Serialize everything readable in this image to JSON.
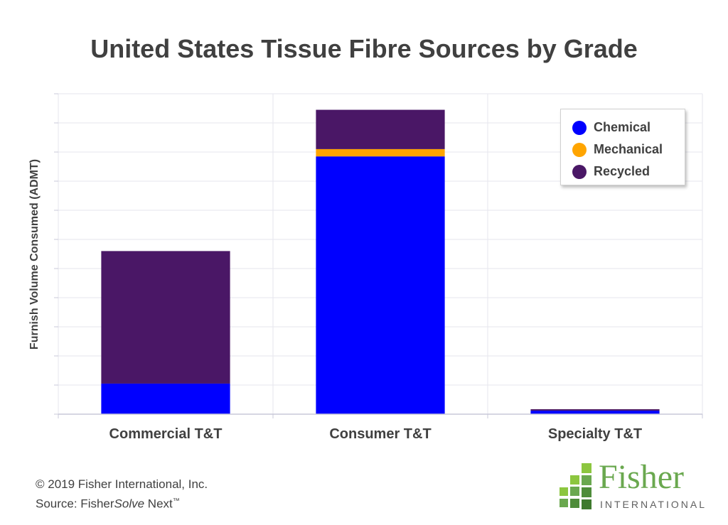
{
  "chart_data": {
    "type": "bar",
    "stacked": true,
    "title": "United States Tissue Fibre Sources by Grade",
    "ylabel": "Furnish Volume Consumed (ADMT)",
    "xlabel": "",
    "ylim": [
      0,
      11
    ],
    "grid": true,
    "legend_position": "top-right",
    "categories": [
      "Commercial T&T",
      "Consumer T&T",
      "Specialty T&T"
    ],
    "series": [
      {
        "name": "Chemical",
        "color": "#0000ff",
        "values": [
          1.05,
          8.85,
          0.12
        ]
      },
      {
        "name": "Mechanical",
        "color": "#ffa500",
        "values": [
          0,
          0.25,
          0
        ]
      },
      {
        "name": "Recycled",
        "color": "#4a1766",
        "values": [
          4.55,
          1.35,
          0.05
        ]
      }
    ]
  },
  "footer": {
    "copyright": "© 2019 Fisher International, Inc.",
    "source_prefix": "Source: Fisher",
    "source_italic": "Solve",
    "source_suffix": " Next",
    "trademark": "™"
  },
  "logo": {
    "word": "Fisher",
    "sub": "INTERNATIONAL",
    "color": "#6aa84f"
  }
}
